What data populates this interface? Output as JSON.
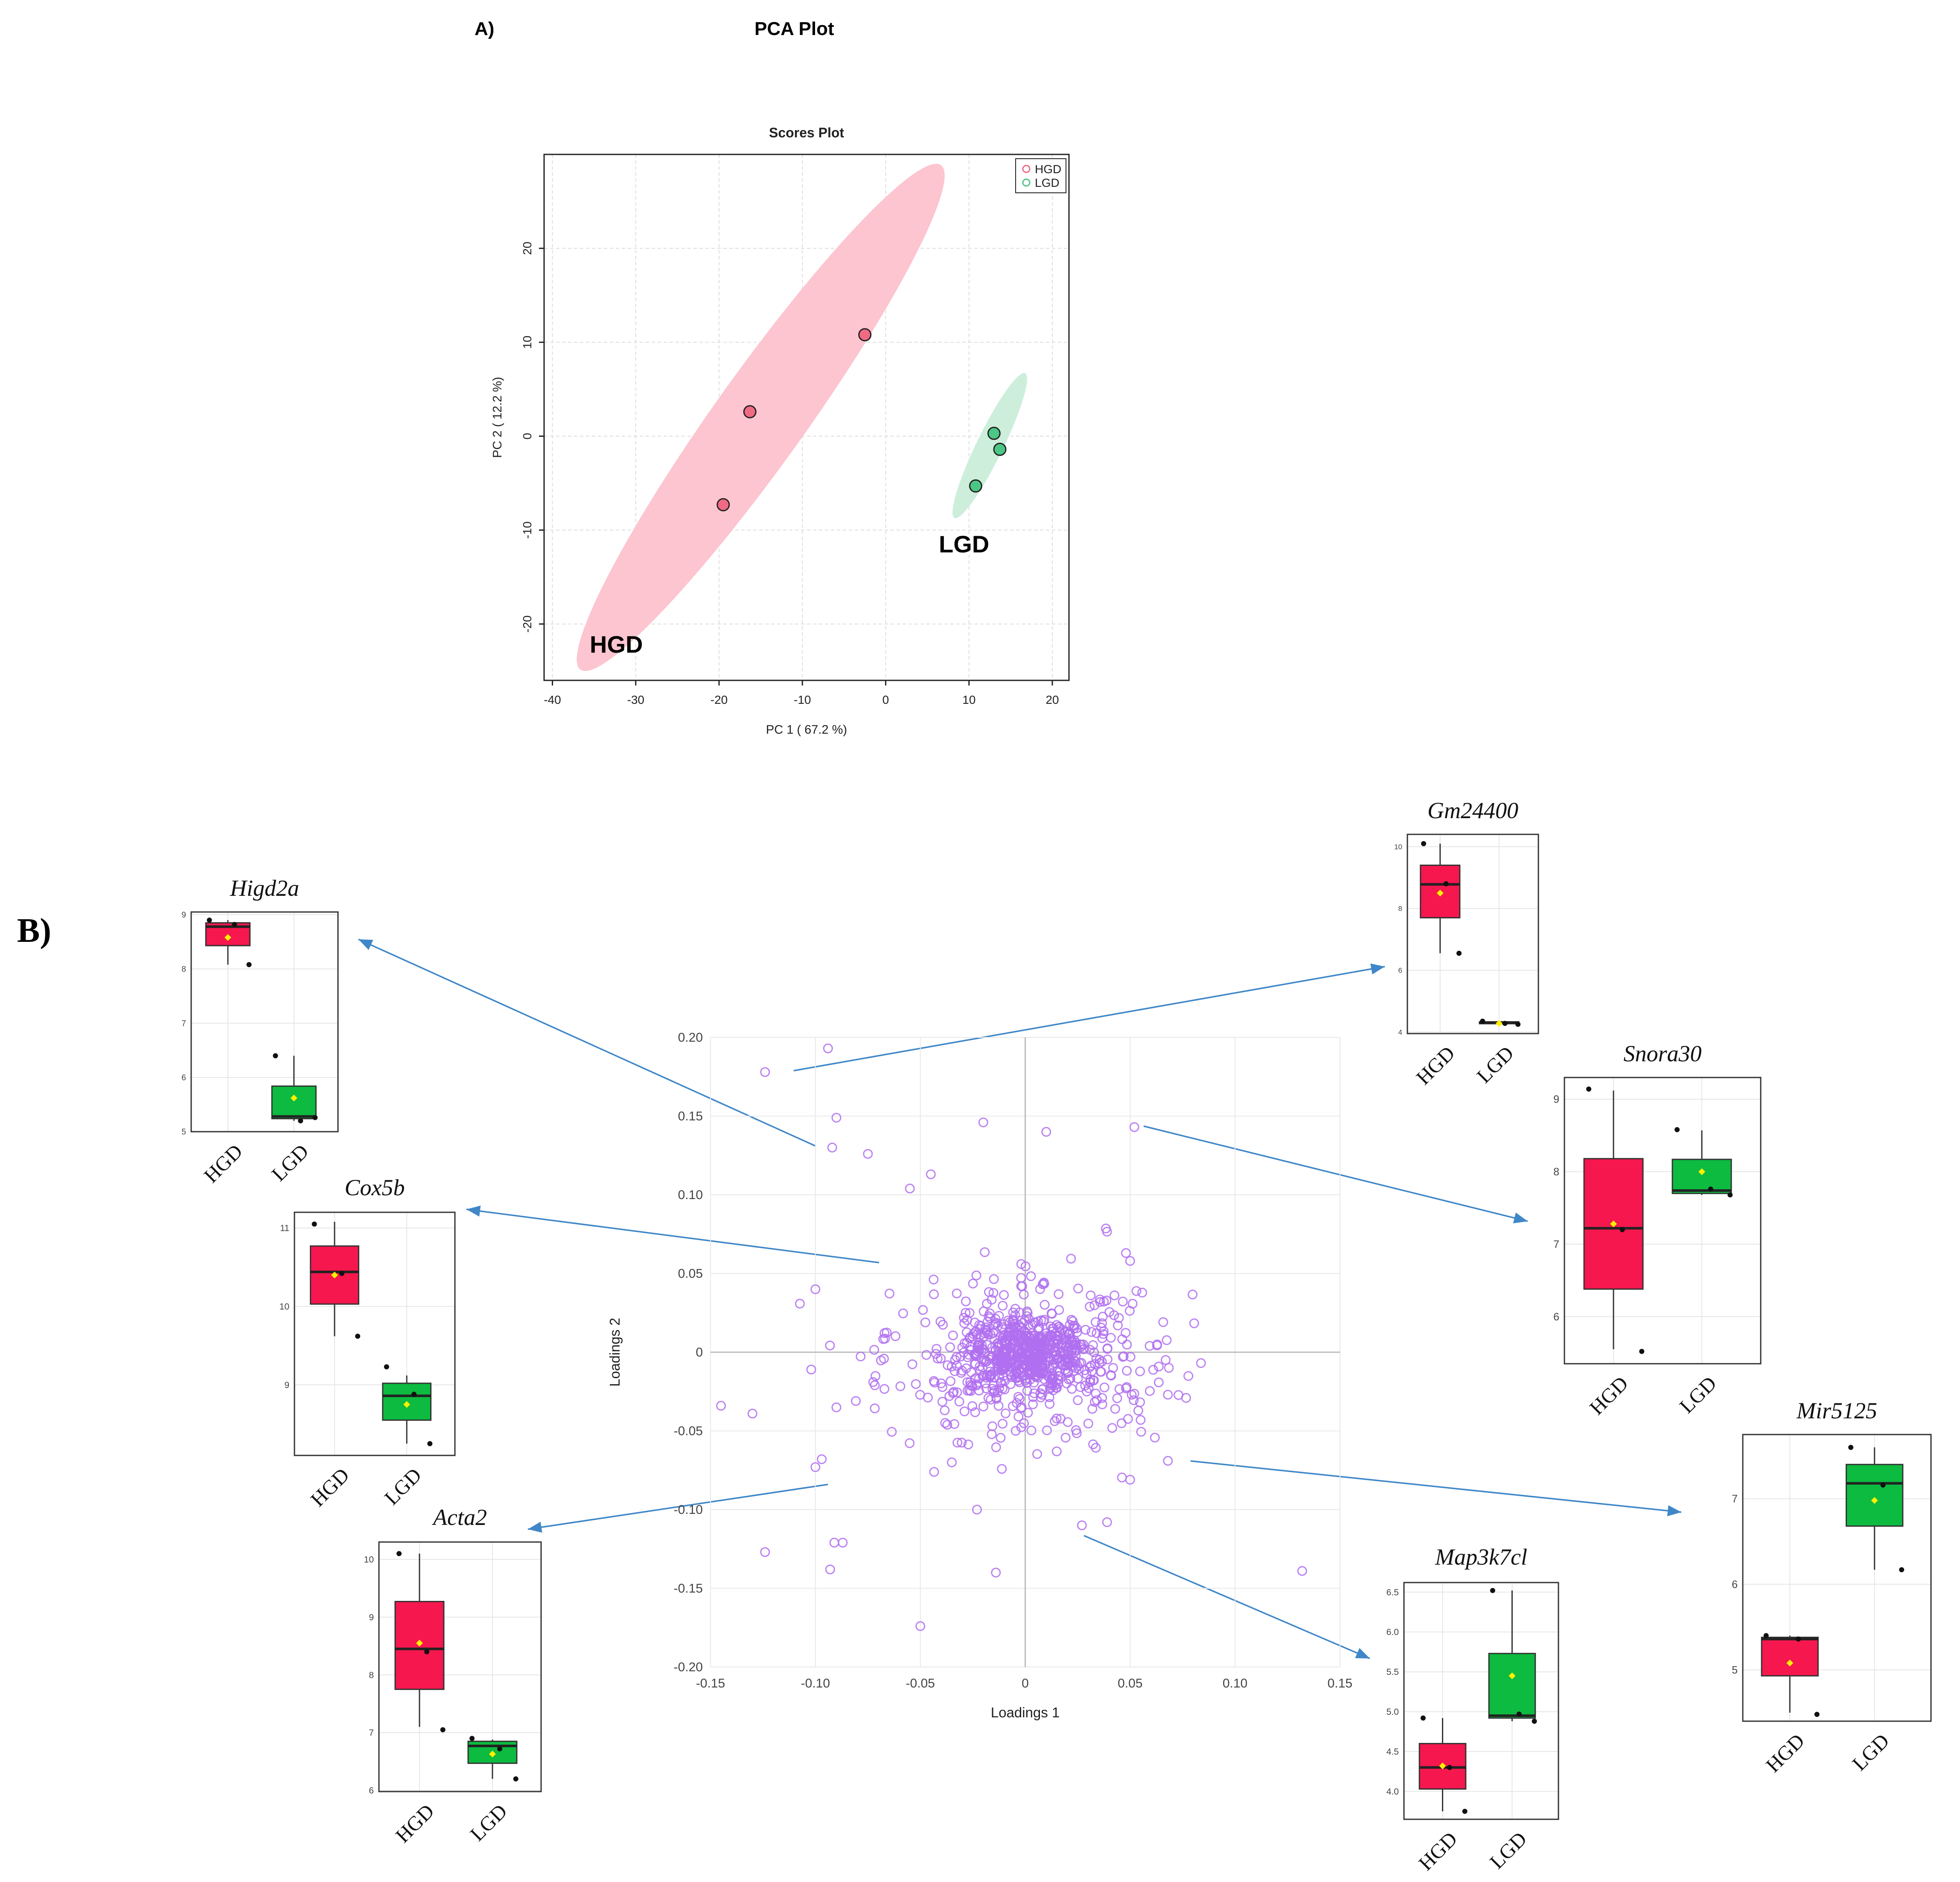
{
  "panel_a": {
    "label": "A)",
    "heading": "PCA Plot"
  },
  "panel_b": {
    "label": "B)"
  },
  "colors": {
    "hgd": "#f06a84",
    "hgd_ellipse": "#fcc5d0",
    "lgd": "#4cc685",
    "lgd_ellipse": "#cdeedb",
    "box_hgd": "#f5174e",
    "box_lgd": "#0cbb40",
    "loading_point": "#b06ef0",
    "arrow": "#3f87c8",
    "mean_marker": "#ffef00"
  },
  "chart_data": [
    {
      "id": "scores",
      "type": "scatter",
      "title": "Scores Plot",
      "xlabel": "PC 1 ( 67.2 %)",
      "ylabel": "PC 2 ( 12.2 %)",
      "xlim": [
        -41,
        22
      ],
      "ylim": [
        -26,
        30
      ],
      "xticks": [
        -40,
        -30,
        -20,
        -10,
        0,
        10,
        20
      ],
      "yticks": [
        -20,
        -10,
        0,
        10,
        20
      ],
      "grid": true,
      "legend": "top-right",
      "series": [
        {
          "name": "HGD",
          "points": [
            [
              -19.5,
              -7.3
            ],
            [
              -16.3,
              2.6
            ],
            [
              -2.5,
              10.8
            ]
          ],
          "ellipse": {
            "center": [
              -15,
              2
            ],
            "semi_major": 34.5,
            "semi_minor": 5.2,
            "angle_deg": 51
          }
        },
        {
          "name": "LGD",
          "points": [
            [
              10.8,
              -5.3
            ],
            [
              13.0,
              0.3
            ],
            [
              13.7,
              -1.4
            ]
          ],
          "ellipse": {
            "center": [
              12.5,
              -1.0
            ],
            "semi_major": 8.8,
            "semi_minor": 1.55,
            "angle_deg": 61
          }
        }
      ],
      "annotations": [
        "HGD",
        "LGD"
      ]
    },
    {
      "id": "loadings",
      "type": "scatter",
      "title": "",
      "xlabel": "Loadings 1",
      "ylabel": "Loadings 2",
      "xlim": [
        -0.15,
        0.15
      ],
      "ylim": [
        -0.2,
        0.2
      ],
      "xticks": [
        -0.15,
        -0.1,
        -0.05,
        0,
        0.05,
        0.1,
        0.15
      ],
      "xtick_labels": [
        "-0.15",
        "-0.10",
        "-0.05",
        "0",
        "0.05",
        "0.10",
        "0.15"
      ],
      "yticks": [
        -0.2,
        -0.15,
        -0.1,
        -0.05,
        0,
        0.05,
        0.1,
        0.15,
        0.2
      ],
      "ytick_labels": [
        "-0.20",
        "-0.15",
        "-0.10",
        "-0.05",
        "0",
        "0.05",
        "0.10",
        "0.15",
        "0.20"
      ],
      "grid": true,
      "outliers": [
        [
          -0.124,
          0.178
        ],
        [
          -0.094,
          0.193
        ],
        [
          -0.092,
          0.13
        ],
        [
          -0.09,
          0.149
        ],
        [
          -0.075,
          0.126
        ],
        [
          -0.02,
          0.146
        ],
        [
          0.01,
          0.14
        ],
        [
          0.052,
          0.143
        ],
        [
          -0.045,
          0.113
        ],
        [
          -0.055,
          0.104
        ],
        [
          0.048,
          0.063
        ],
        [
          0.05,
          0.058
        ],
        [
          -0.1,
          0.04
        ],
        [
          -0.145,
          -0.034
        ],
        [
          -0.13,
          -0.039
        ],
        [
          -0.102,
          -0.011
        ],
        [
          -0.097,
          -0.068
        ],
        [
          -0.1,
          -0.073
        ],
        [
          -0.091,
          -0.121
        ],
        [
          -0.087,
          -0.121
        ],
        [
          -0.093,
          -0.138
        ],
        [
          -0.124,
          -0.127
        ],
        [
          -0.05,
          -0.174
        ],
        [
          -0.014,
          -0.14
        ],
        [
          -0.023,
          -0.1
        ],
        [
          0.027,
          -0.11
        ],
        [
          0.039,
          -0.108
        ],
        [
          0.05,
          -0.081
        ],
        [
          0.068,
          -0.069
        ],
        [
          0.055,
          -0.043
        ],
        [
          0.068,
          -0.027
        ],
        [
          0.132,
          -0.139
        ],
        [
          0.015,
          -0.063
        ],
        [
          -0.035,
          -0.07
        ],
        [
          -0.09,
          -0.035
        ]
      ],
      "cluster": {
        "n": 900,
        "center": [
          -0.002,
          -0.002
        ],
        "sd": [
          0.026,
          0.021
        ]
      }
    },
    {
      "id": "Higd2a",
      "type": "box",
      "title": "Higd2a",
      "categories": [
        "HGD",
        "LGD"
      ],
      "ylim": [
        5,
        9.05
      ],
      "yticks": [
        5,
        6,
        7,
        8,
        9
      ],
      "boxes": [
        {
          "q1": 8.43,
          "median": 8.78,
          "q3": 8.85,
          "low": 8.08,
          "high": 8.9,
          "mean": 8.58,
          "points": [
            8.9,
            8.82,
            8.08
          ]
        },
        {
          "q1": 5.24,
          "median": 5.28,
          "q3": 5.84,
          "low": 5.2,
          "high": 6.4,
          "mean": 5.62,
          "points": [
            6.4,
            5.2,
            5.26
          ]
        }
      ]
    },
    {
      "id": "Cox5b",
      "type": "box",
      "title": "Cox5b",
      "categories": [
        "HGD",
        "LGD"
      ],
      "ylim": [
        8.1,
        11.2
      ],
      "yticks": [
        9,
        10,
        11
      ],
      "boxes": [
        {
          "q1": 10.03,
          "median": 10.44,
          "q3": 10.77,
          "low": 9.62,
          "high": 11.08,
          "mean": 10.4,
          "points": [
            11.05,
            10.42,
            9.62
          ]
        },
        {
          "q1": 8.55,
          "median": 8.86,
          "q3": 9.02,
          "low": 8.25,
          "high": 9.12,
          "mean": 8.75,
          "points": [
            9.23,
            8.88,
            8.25
          ]
        }
      ]
    },
    {
      "id": "Acta2",
      "type": "box",
      "title": "Acta2",
      "categories": [
        "HGD",
        "LGD"
      ],
      "ylim": [
        5.98,
        10.3
      ],
      "yticks": [
        6,
        7,
        8,
        9,
        10
      ],
      "boxes": [
        {
          "q1": 7.75,
          "median": 8.45,
          "q3": 9.27,
          "low": 7.1,
          "high": 10.1,
          "mean": 8.55,
          "points": [
            10.1,
            8.4,
            7.05
          ]
        },
        {
          "q1": 6.47,
          "median": 6.77,
          "q3": 6.85,
          "low": 6.2,
          "high": 6.88,
          "mean": 6.63,
          "points": [
            6.9,
            6.72,
            6.2
          ]
        }
      ]
    },
    {
      "id": "Gm24400",
      "type": "box",
      "title": "Gm24400",
      "categories": [
        "HGD",
        "LGD"
      ],
      "ylim": [
        3.95,
        10.4
      ],
      "yticks": [
        4,
        6,
        8,
        10
      ],
      "boxes": [
        {
          "q1": 7.7,
          "median": 8.78,
          "q3": 9.4,
          "low": 6.55,
          "high": 10.1,
          "mean": 8.5,
          "points": [
            10.1,
            8.8,
            6.55
          ]
        },
        {
          "q1": 4.27,
          "median": 4.3,
          "q3": 4.33,
          "low": 4.25,
          "high": 4.35,
          "mean": 4.28,
          "points": [
            4.35,
            4.28,
            4.25
          ]
        }
      ]
    },
    {
      "id": "Snora30",
      "type": "box",
      "title": "Snora30",
      "categories": [
        "HGD",
        "LGD"
      ],
      "ylim": [
        5.35,
        9.3
      ],
      "yticks": [
        6,
        7,
        8,
        9
      ],
      "boxes": [
        {
          "q1": 6.38,
          "median": 7.22,
          "q3": 8.18,
          "low": 5.55,
          "high": 9.12,
          "mean": 7.28,
          "points": [
            9.14,
            7.2,
            5.52
          ]
        },
        {
          "q1": 7.7,
          "median": 7.74,
          "q3": 8.17,
          "low": 7.68,
          "high": 8.57,
          "mean": 8.0,
          "points": [
            8.58,
            7.76,
            7.68
          ]
        }
      ]
    },
    {
      "id": "Mir5125",
      "type": "box",
      "title": "Mir5125",
      "categories": [
        "HGD",
        "LGD"
      ],
      "ylim": [
        4.4,
        7.75
      ],
      "yticks": [
        5,
        6,
        7
      ],
      "boxes": [
        {
          "q1": 4.93,
          "median": 5.36,
          "q3": 5.38,
          "low": 4.5,
          "high": 5.4,
          "mean": 5.08,
          "points": [
            5.4,
            5.36,
            4.48
          ]
        },
        {
          "q1": 6.68,
          "median": 7.18,
          "q3": 7.4,
          "low": 6.17,
          "high": 7.6,
          "mean": 6.98,
          "points": [
            7.6,
            7.16,
            6.17
          ]
        }
      ]
    },
    {
      "id": "Map3k7cl",
      "type": "box",
      "title": "Map3k7cl",
      "categories": [
        "HGD",
        "LGD"
      ],
      "ylim": [
        3.65,
        6.62
      ],
      "yticks": [
        4.0,
        4.5,
        5.0,
        5.5,
        6.0,
        6.5
      ],
      "ytick_labels": [
        "4.0",
        "4.5",
        "5.0",
        "5.5",
        "6.0",
        "6.5"
      ],
      "boxes": [
        {
          "q1": 4.03,
          "median": 4.3,
          "q3": 4.6,
          "low": 3.75,
          "high": 4.92,
          "mean": 4.32,
          "points": [
            4.92,
            4.3,
            3.75
          ]
        },
        {
          "q1": 4.92,
          "median": 4.95,
          "q3": 5.73,
          "low": 4.88,
          "high": 6.52,
          "mean": 5.45,
          "points": [
            6.52,
            4.97,
            4.88
          ]
        }
      ]
    }
  ]
}
